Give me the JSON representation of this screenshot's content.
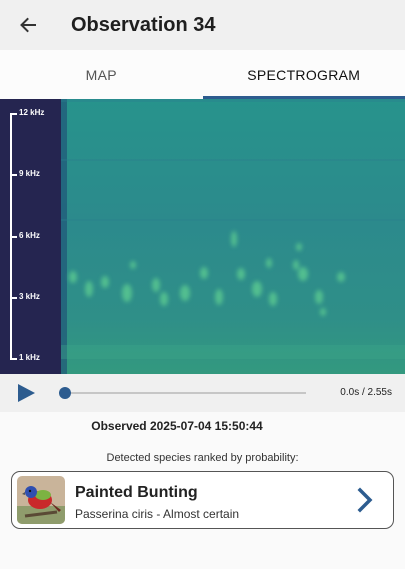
{
  "appbar": {
    "title": "Observation 34",
    "back_icon": "arrow-left-icon"
  },
  "tabs": [
    {
      "label": "MAP",
      "active": false
    },
    {
      "label": "SPECTROGRAM",
      "active": true
    }
  ],
  "spectrogram": {
    "axis_labels": [
      "12 kHz",
      "9 kHz",
      "6 kHz",
      "3 kHz",
      "1 kHz"
    ],
    "colors": {
      "axis_bg": "#252550",
      "base": "#2e8b8a",
      "highlight": "#5fcf92"
    }
  },
  "player": {
    "time": "0.0s / 2.55s",
    "progress": 0,
    "accent": "#2d5c8f"
  },
  "observed": "Observed 2025-07-04 15:50:44",
  "detected_label": "Detected species ranked by probability:",
  "detection": {
    "name": "Painted Bunting",
    "subtitle": "Passerina ciris - Almost certain",
    "thumb_icon": "bird-photo",
    "chevron_icon": "chevron-right-icon"
  }
}
